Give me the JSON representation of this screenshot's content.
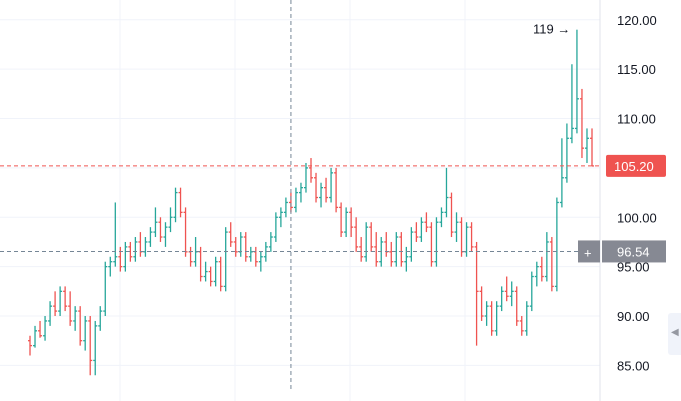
{
  "chart_data": {
    "type": "bar",
    "style": "ohlc",
    "ylim": [
      82.0,
      121.5
    ],
    "y_ticks": [
      "85.00",
      "90.00",
      "95.00",
      "100.00",
      "105.00",
      "110.00",
      "115.00",
      "120.00"
    ],
    "y_tick_values": [
      85,
      90,
      95,
      100,
      105,
      110,
      115,
      120
    ],
    "grid": true,
    "colors": {
      "up": "#26a69a",
      "down": "#ef5350",
      "price_line": "#ef5350",
      "crosshair": "#758696"
    },
    "bars": [
      [
        87.5,
        88.0,
        86.0,
        87.0
      ],
      [
        87.0,
        89.0,
        86.8,
        88.5
      ],
      [
        88.5,
        89.5,
        87.8,
        88.0
      ],
      [
        88.0,
        90.0,
        87.5,
        89.5
      ],
      [
        89.5,
        91.5,
        89.0,
        91.0
      ],
      [
        91.0,
        92.5,
        90.0,
        90.5
      ],
      [
        90.5,
        93.0,
        90.0,
        92.5
      ],
      [
        92.5,
        93.0,
        90.5,
        91.0
      ],
      [
        91.0,
        92.5,
        89.0,
        89.5
      ],
      [
        89.5,
        91.0,
        88.5,
        90.5
      ],
      [
        90.5,
        91.0,
        87.0,
        87.5
      ],
      [
        87.5,
        90.0,
        86.5,
        89.5
      ],
      [
        89.5,
        90.0,
        84.0,
        85.5
      ],
      [
        85.5,
        89.5,
        84.0,
        89.0
      ],
      [
        89.0,
        91.0,
        88.5,
        90.5
      ],
      [
        90.5,
        95.5,
        90.0,
        95.0
      ],
      [
        95.0,
        96.0,
        94.0,
        95.5
      ],
      [
        95.5,
        101.5,
        95.0,
        96.0
      ],
      [
        96.0,
        97.0,
        94.5,
        95.0
      ],
      [
        95.0,
        97.5,
        94.5,
        97.0
      ],
      [
        97.0,
        97.5,
        95.5,
        96.0
      ],
      [
        96.0,
        98.0,
        95.5,
        97.5
      ],
      [
        97.5,
        98.5,
        96.0,
        96.5
      ],
      [
        96.5,
        98.0,
        96.0,
        97.5
      ],
      [
        97.5,
        99.0,
        97.0,
        98.5
      ],
      [
        98.5,
        101.0,
        98.0,
        99.5
      ],
      [
        99.5,
        100.0,
        97.5,
        98.0
      ],
      [
        98.0,
        99.5,
        97.0,
        99.0
      ],
      [
        99.0,
        101.0,
        98.5,
        100.0
      ],
      [
        100.0,
        103.0,
        99.5,
        102.5
      ],
      [
        102.5,
        103.0,
        100.0,
        100.5
      ],
      [
        100.5,
        101.0,
        96.0,
        96.5
      ],
      [
        96.5,
        97.0,
        95.0,
        95.5
      ],
      [
        95.5,
        98.0,
        95.0,
        96.5
      ],
      [
        96.5,
        97.0,
        93.5,
        94.0
      ],
      [
        94.0,
        95.5,
        93.5,
        94.5
      ],
      [
        94.5,
        95.0,
        93.0,
        93.5
      ],
      [
        93.5,
        96.0,
        93.0,
        95.5
      ],
      [
        95.5,
        96.0,
        92.5,
        93.0
      ],
      [
        93.0,
        99.0,
        92.5,
        98.5
      ],
      [
        98.5,
        99.5,
        97.0,
        97.5
      ],
      [
        97.5,
        98.0,
        96.0,
        96.5
      ],
      [
        96.5,
        98.5,
        96.0,
        98.0
      ],
      [
        98.0,
        98.5,
        95.5,
        96.0
      ],
      [
        96.0,
        97.0,
        95.5,
        96.5
      ],
      [
        96.5,
        97.0,
        95.0,
        95.5
      ],
      [
        95.5,
        96.5,
        94.5,
        96.0
      ],
      [
        96.0,
        97.5,
        95.5,
        97.0
      ],
      [
        97.0,
        98.5,
        96.5,
        98.0
      ],
      [
        98.0,
        100.5,
        97.5,
        100.0
      ],
      [
        100.0,
        101.0,
        99.0,
        100.5
      ],
      [
        100.5,
        102.0,
        100.0,
        101.5
      ],
      [
        101.5,
        102.5,
        100.5,
        101.0
      ],
      [
        101.0,
        103.0,
        100.5,
        102.5
      ],
      [
        102.5,
        103.5,
        101.5,
        103.0
      ],
      [
        103.0,
        105.5,
        102.5,
        105.0
      ],
      [
        105.0,
        106.0,
        103.5,
        104.0
      ],
      [
        104.0,
        104.5,
        101.5,
        102.0
      ],
      [
        102.0,
        103.5,
        101.0,
        103.0
      ],
      [
        103.0,
        104.0,
        101.5,
        102.0
      ],
      [
        102.0,
        105.0,
        101.5,
        104.5
      ],
      [
        104.5,
        105.0,
        100.5,
        101.0
      ],
      [
        101.0,
        101.5,
        98.0,
        98.5
      ],
      [
        98.5,
        101.0,
        98.0,
        100.5
      ],
      [
        100.5,
        101.0,
        98.0,
        99.0
      ],
      [
        99.0,
        100.0,
        96.5,
        97.0
      ],
      [
        97.0,
        98.0,
        95.5,
        96.0
      ],
      [
        96.0,
        99.5,
        95.5,
        99.0
      ],
      [
        99.0,
        99.5,
        96.5,
        97.0
      ],
      [
        97.0,
        98.5,
        95.0,
        95.5
      ],
      [
        95.5,
        98.0,
        95.0,
        97.5
      ],
      [
        97.5,
        98.5,
        96.0,
        96.5
      ],
      [
        96.5,
        97.5,
        95.0,
        95.5
      ],
      [
        95.5,
        98.5,
        95.0,
        98.0
      ],
      [
        98.0,
        98.5,
        95.0,
        95.5
      ],
      [
        95.5,
        97.0,
        94.5,
        96.0
      ],
      [
        96.0,
        99.0,
        95.5,
        98.5
      ],
      [
        98.5,
        99.5,
        97.5,
        98.0
      ],
      [
        98.0,
        100.0,
        97.5,
        99.5
      ],
      [
        99.5,
        100.5,
        98.5,
        99.0
      ],
      [
        99.0,
        99.5,
        95.0,
        95.5
      ],
      [
        95.5,
        100.0,
        95.0,
        99.5
      ],
      [
        99.5,
        101.0,
        99.0,
        100.5
      ],
      [
        100.5,
        105.0,
        100.0,
        102.0
      ],
      [
        102.0,
        102.5,
        98.0,
        98.5
      ],
      [
        98.5,
        100.5,
        97.5,
        99.5
      ],
      [
        99.5,
        100.0,
        96.0,
        96.5
      ],
      [
        96.5,
        99.5,
        96.0,
        99.0
      ],
      [
        99.0,
        99.5,
        96.5,
        97.0
      ],
      [
        97.0,
        97.5,
        87.0,
        92.5
      ],
      [
        92.5,
        93.0,
        89.5,
        90.0
      ],
      [
        90.0,
        91.5,
        89.0,
        91.0
      ],
      [
        91.0,
        91.5,
        88.0,
        88.5
      ],
      [
        88.5,
        91.5,
        88.0,
        91.0
      ],
      [
        91.0,
        93.0,
        90.5,
        92.5
      ],
      [
        92.5,
        94.0,
        91.5,
        92.0
      ],
      [
        92.0,
        93.5,
        91.0,
        92.5
      ],
      [
        92.5,
        93.0,
        89.0,
        89.5
      ],
      [
        89.5,
        90.0,
        88.0,
        88.5
      ],
      [
        88.5,
        91.5,
        88.0,
        91.0
      ],
      [
        91.0,
        94.5,
        90.5,
        94.0
      ],
      [
        94.0,
        95.5,
        93.0,
        95.0
      ],
      [
        95.0,
        96.0,
        93.5,
        94.0
      ],
      [
        94.0,
        98.5,
        93.5,
        97.5
      ],
      [
        97.5,
        98.0,
        92.5,
        93.0
      ],
      [
        93.0,
        102.0,
        92.5,
        101.5
      ],
      [
        101.5,
        108.0,
        101.0,
        104.0
      ],
      [
        104.0,
        109.5,
        103.5,
        108.0
      ],
      [
        108.0,
        115.5,
        107.5,
        109.0
      ],
      [
        109.0,
        119.0,
        108.5,
        112.0
      ],
      [
        112.0,
        113.0,
        106.0,
        107.0
      ],
      [
        107.0,
        109.0,
        105.5,
        108.0
      ],
      [
        108.0,
        109.0,
        105.2,
        105.2
      ]
    ],
    "price_tag": "105.20",
    "price_value": 105.2,
    "crosshair_tag": "96.54",
    "crosshair_value": 96.54,
    "crosshair_plus": "+",
    "annotation": "119 →",
    "annotation_value": 119
  }
}
